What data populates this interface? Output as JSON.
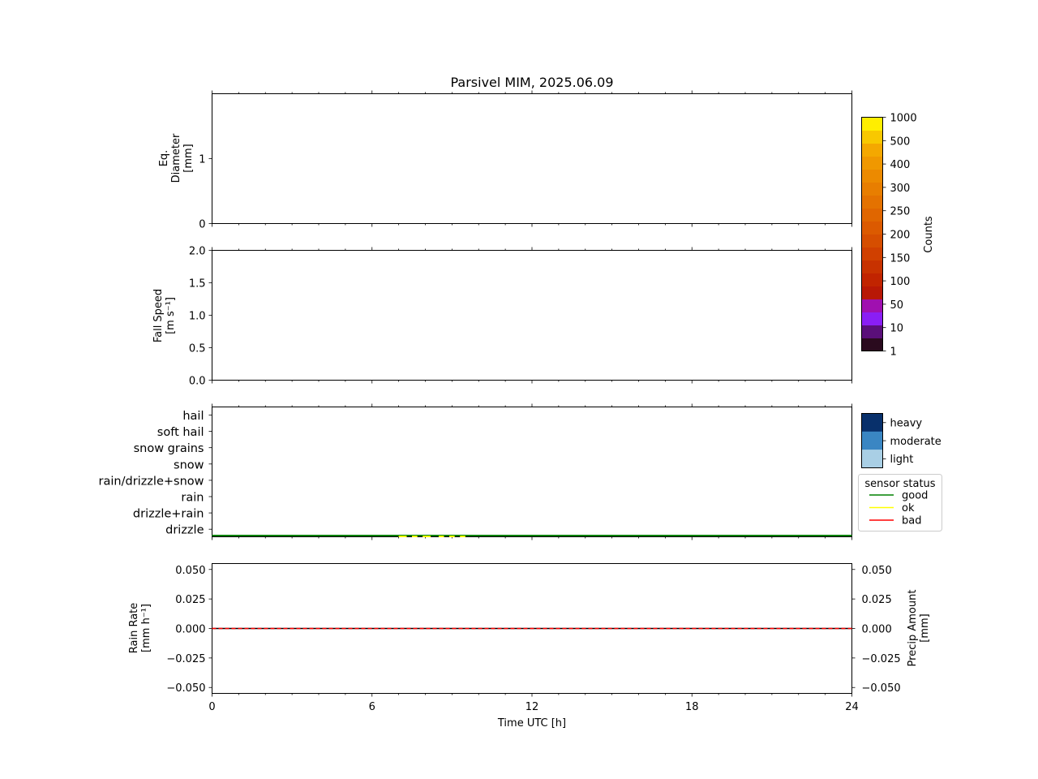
{
  "figure": {
    "title": "Parsivel MIM, 2025.06.09",
    "xlabel": "Time UTC [h]",
    "x_ticks": [
      "0",
      "6",
      "12",
      "18",
      "24"
    ]
  },
  "panels": {
    "diameter": {
      "ylabel_lines": [
        "Eq.",
        "Diameter",
        "[mm]"
      ],
      "y_ticks": [
        "1",
        "0"
      ]
    },
    "speed": {
      "ylabel_lines": [
        "Fall Speed",
        "[m s⁻¹]"
      ],
      "y_ticks": [
        "2.0",
        "1.5",
        "1.0",
        "0.5",
        "0.0"
      ]
    },
    "type": {
      "categories": [
        "hail",
        "soft hail",
        "snow grains",
        "snow",
        "rain/drizzle+snow",
        "rain",
        "drizzle+rain",
        "drizzle"
      ]
    },
    "rain": {
      "ylabel_left_lines": [
        "Rain Rate",
        "[mm h⁻¹]"
      ],
      "ylabel_right_lines": [
        "Precip Amount",
        "[mm]"
      ],
      "y_ticks": [
        "0.050",
        "0.025",
        "0.000",
        "−0.025",
        "−0.050"
      ]
    }
  },
  "colorbar": {
    "label": "Counts",
    "tick_labels": [
      "1000",
      "500",
      "400",
      "300",
      "250",
      "200",
      "150",
      "100",
      "50",
      "10",
      "1"
    ],
    "colors_bottom_to_top": [
      "#2a0a1e",
      "#5a0f7a",
      "#8a1ef5",
      "#a010b0",
      "#b81805",
      "#c12400",
      "#c83200",
      "#d04000",
      "#d64e00",
      "#dc5a00",
      "#e06600",
      "#e47200",
      "#e87e00",
      "#ec8a00",
      "#f09800",
      "#f4a800",
      "#f8c800",
      "#ffee00"
    ]
  },
  "intensity_legend": {
    "labels": [
      "heavy",
      "moderate",
      "light"
    ],
    "colors": [
      "#08306b",
      "#3a86c3",
      "#a9cfe5"
    ]
  },
  "status_legend": {
    "title": "sensor status",
    "items": [
      {
        "label": "good",
        "color": "#008000"
      },
      {
        "label": "ok",
        "color": "#ffff00"
      },
      {
        "label": "bad",
        "color": "#ff0000"
      }
    ]
  },
  "chart_data": [
    {
      "type": "heatmap",
      "panel": "diameter",
      "ylabel": "Eq. Diameter [mm]",
      "xlim": [
        0,
        24
      ],
      "ylim": [
        0,
        2
      ],
      "values": []
    },
    {
      "type": "heatmap",
      "panel": "speed",
      "ylabel": "Fall Speed [m s⁻¹]",
      "xlim": [
        0,
        24
      ],
      "ylim": [
        0,
        2
      ],
      "values": []
    },
    {
      "type": "line",
      "panel": "type",
      "xlim": [
        0,
        24
      ],
      "series": [
        {
          "name": "good",
          "segments": [
            [
              0,
              24
            ]
          ]
        },
        {
          "name": "ok",
          "segments": [
            [
              7.0,
              7.3
            ],
            [
              7.5,
              7.7
            ],
            [
              7.9,
              8.2
            ],
            [
              8.5,
              8.7
            ],
            [
              8.9,
              9.1
            ],
            [
              9.3,
              9.5
            ]
          ]
        }
      ]
    },
    {
      "type": "line",
      "panel": "rain",
      "xlabel": "Time UTC [h]",
      "xlim": [
        0,
        24
      ],
      "ylim": [
        -0.055,
        0.055
      ],
      "series": [
        {
          "name": "Rain Rate [mm h⁻¹]",
          "x": [
            0,
            24
          ],
          "y": [
            0,
            0
          ]
        },
        {
          "name": "Precip Amount [mm]",
          "x": [
            0,
            24
          ],
          "y": [
            0,
            0
          ]
        }
      ]
    }
  ]
}
